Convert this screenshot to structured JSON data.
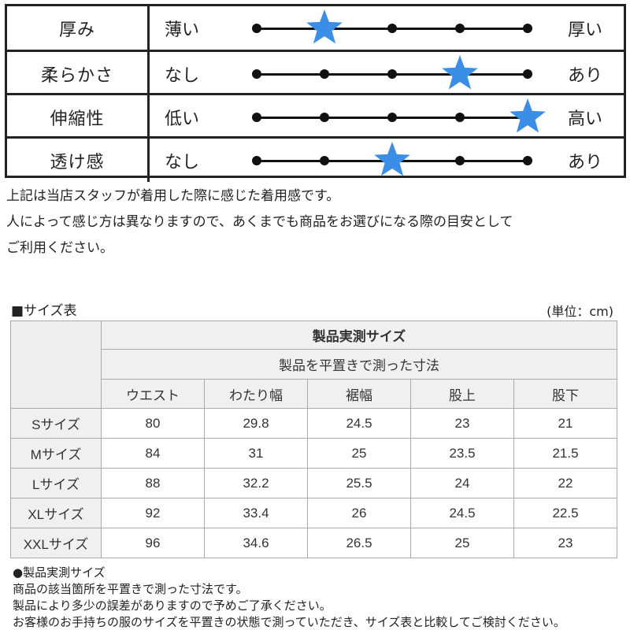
{
  "feel": {
    "rows": [
      {
        "label": "厚み",
        "low": "薄い",
        "high": "厚い",
        "level": 2
      },
      {
        "label": "柔らかさ",
        "low": "なし",
        "high": "あり",
        "level": 4
      },
      {
        "label": "伸縮性",
        "low": "低い",
        "high": "高い",
        "level": 5
      },
      {
        "label": "透け感",
        "low": "なし",
        "high": "あり",
        "level": 3
      }
    ],
    "scale_points": 5,
    "star_color": "#3a8ee6"
  },
  "notes": [
    "上記は当店スタッフが着用した際に感じた着用感です。",
    "人によって感じ方は異なりますので、あくまでも商品をお選びになる際の目安として",
    "ご利用ください。"
  ],
  "size": {
    "title": "■サイズ表",
    "unit": "(単位：cm)",
    "header_main": "製品実測サイズ",
    "header_sub": "製品を平置きで測った寸法",
    "columns": [
      "ウエスト",
      "わたり幅",
      "裾幅",
      "股上",
      "股下"
    ],
    "rows": [
      {
        "name": "Sサイズ",
        "values": [
          "80",
          "29.8",
          "24.5",
          "23",
          "21"
        ]
      },
      {
        "name": "Mサイズ",
        "values": [
          "84",
          "31",
          "25",
          "23.5",
          "21.5"
        ]
      },
      {
        "name": "Lサイズ",
        "values": [
          "88",
          "32.2",
          "25.5",
          "24",
          "22"
        ]
      },
      {
        "name": "XLサイズ",
        "values": [
          "92",
          "33.4",
          "26",
          "24.5",
          "22.5"
        ]
      },
      {
        "name": "XXLサイズ",
        "values": [
          "96",
          "34.6",
          "26.5",
          "25",
          "23"
        ]
      }
    ]
  },
  "footnotes": [
    "●製品実測サイズ",
    "商品の該当箇所を平置きで測った寸法です。",
    "製品により多少の誤差がありますので予めご了承ください。",
    "お客様のお手持ちの服のサイズを平置きの状態で測っていただき、サイズ表と比較してご検討ください。"
  ]
}
